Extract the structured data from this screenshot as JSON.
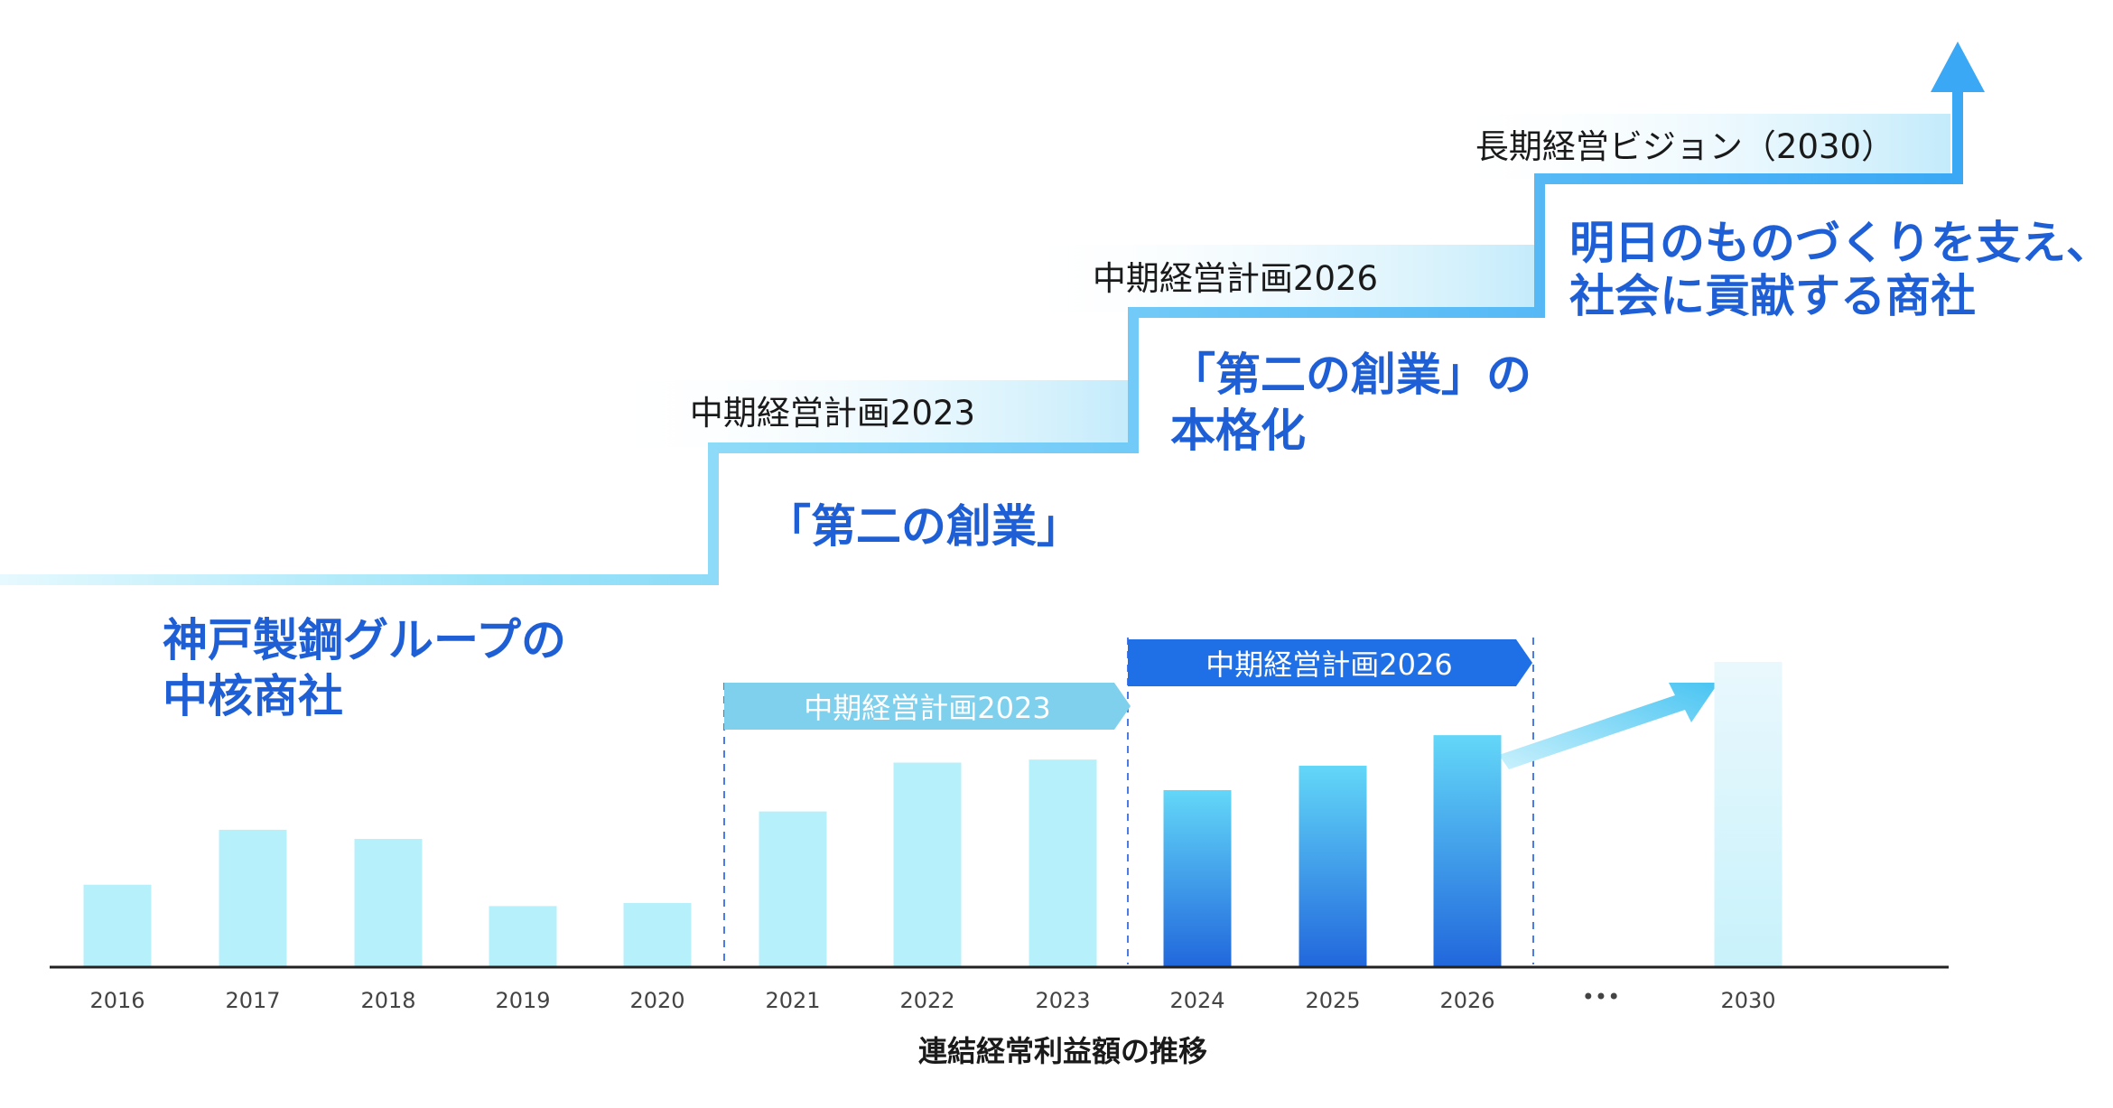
{
  "colors": {
    "step_line": "#5fd0f5",
    "headline": "#1f5fd6",
    "bar_light": "#b6f0fb",
    "bar_mid_top": "#63d7f8",
    "bar_dark_bottom": "#2167dc",
    "period1": "#7fd0ec",
    "period2": "#1f6fe6",
    "band": "#cdeefb",
    "arrow": "#3aa0f4"
  },
  "headlines": {
    "core": {
      "line1": "神戸製鋼グループの",
      "line2": "中核商社"
    },
    "second_founding": "「第二の創業」",
    "full_scale": {
      "line1": "「第二の創業」の",
      "line2": "本格化"
    },
    "vision": {
      "line1": "明日のものづくりを支え、",
      "line2": "社会に貢献する商社"
    }
  },
  "step_labels": {
    "plan2023": "中期経営計画2023",
    "plan2026": "中期経営計画2026",
    "vision2030": "長期経営ビジョン（2030）"
  },
  "periods": {
    "plan2023": "中期経営計画2023",
    "plan2026": "中期経営計画2026"
  },
  "ellipsis": "•••",
  "chart_data": {
    "type": "bar",
    "xlabel": "連結経常利益額の推移",
    "ylabel": "",
    "ylim": [
      0,
      100
    ],
    "categories": [
      "2016",
      "2017",
      "2018",
      "2019",
      "2020",
      "2021",
      "2022",
      "2023",
      "2024",
      "2025",
      "2026",
      "2030"
    ],
    "values": [
      27,
      45,
      42,
      20,
      21,
      51,
      67,
      68,
      58,
      66,
      76,
      100
    ],
    "styles": [
      "light",
      "light",
      "light",
      "light",
      "light",
      "light",
      "light",
      "light",
      "dark",
      "dark",
      "dark",
      "target"
    ]
  }
}
